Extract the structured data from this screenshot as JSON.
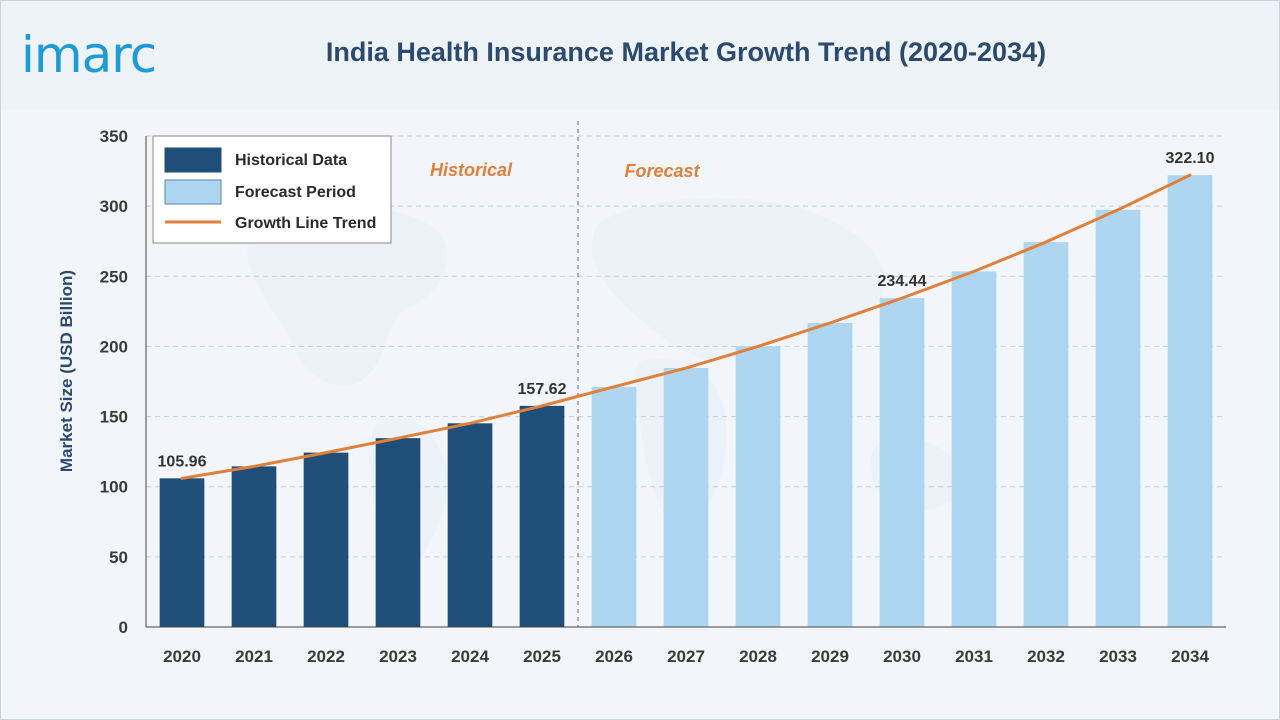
{
  "logo": {
    "text": "imarc"
  },
  "header": {
    "title": "India Health Insurance Market Growth Trend (2020-2034)"
  },
  "colors": {
    "historical": "#1f4e79",
    "forecast": "#aed6f1",
    "trend": "#e0803a",
    "accent": "#1e9ad6",
    "title": "#2c4a6e"
  },
  "legend": {
    "items": [
      {
        "label": "Historical Data",
        "kind": "bar-historical"
      },
      {
        "label": "Forecast Period",
        "kind": "bar-forecast"
      },
      {
        "label": "Growth Line Trend",
        "kind": "line-trend"
      }
    ]
  },
  "sections": {
    "historical": "Historical",
    "forecast": "Forecast"
  },
  "chart_data": {
    "type": "bar",
    "title": "India Health Insurance Market Growth Trend (2020-2034)",
    "xlabel": "",
    "ylabel": "Market Size (USD Billion)",
    "ylim": [
      0,
      350
    ],
    "yticks": [
      0,
      50,
      100,
      150,
      200,
      250,
      300,
      350
    ],
    "grid": true,
    "legend_position": "top-left",
    "categories": [
      "2020",
      "2021",
      "2022",
      "2023",
      "2024",
      "2025",
      "2026",
      "2027",
      "2028",
      "2029",
      "2030",
      "2031",
      "2032",
      "2033",
      "2034"
    ],
    "series": [
      {
        "name": "Historical Data",
        "values": [
          105.96,
          114.5,
          124.3,
          134.6,
          145.2,
          157.62,
          null,
          null,
          null,
          null,
          null,
          null,
          null,
          null,
          null
        ]
      },
      {
        "name": "Forecast Period",
        "values": [
          null,
          null,
          null,
          null,
          null,
          null,
          171.2,
          184.6,
          200.0,
          216.7,
          234.44,
          253.5,
          274.4,
          297.4,
          322.1
        ]
      },
      {
        "name": "Growth Line Trend",
        "type": "line",
        "values": [
          105.96,
          114.5,
          124.3,
          134.6,
          145.2,
          157.62,
          171.2,
          184.6,
          200.0,
          216.7,
          234.44,
          253.5,
          274.4,
          297.4,
          322.1
        ]
      }
    ],
    "data_labels": [
      {
        "category": "2020",
        "text": "105.96"
      },
      {
        "category": "2025",
        "text": "157.62"
      },
      {
        "category": "2030",
        "text": "234.44"
      },
      {
        "category": "2034",
        "text": "322.10"
      }
    ]
  }
}
